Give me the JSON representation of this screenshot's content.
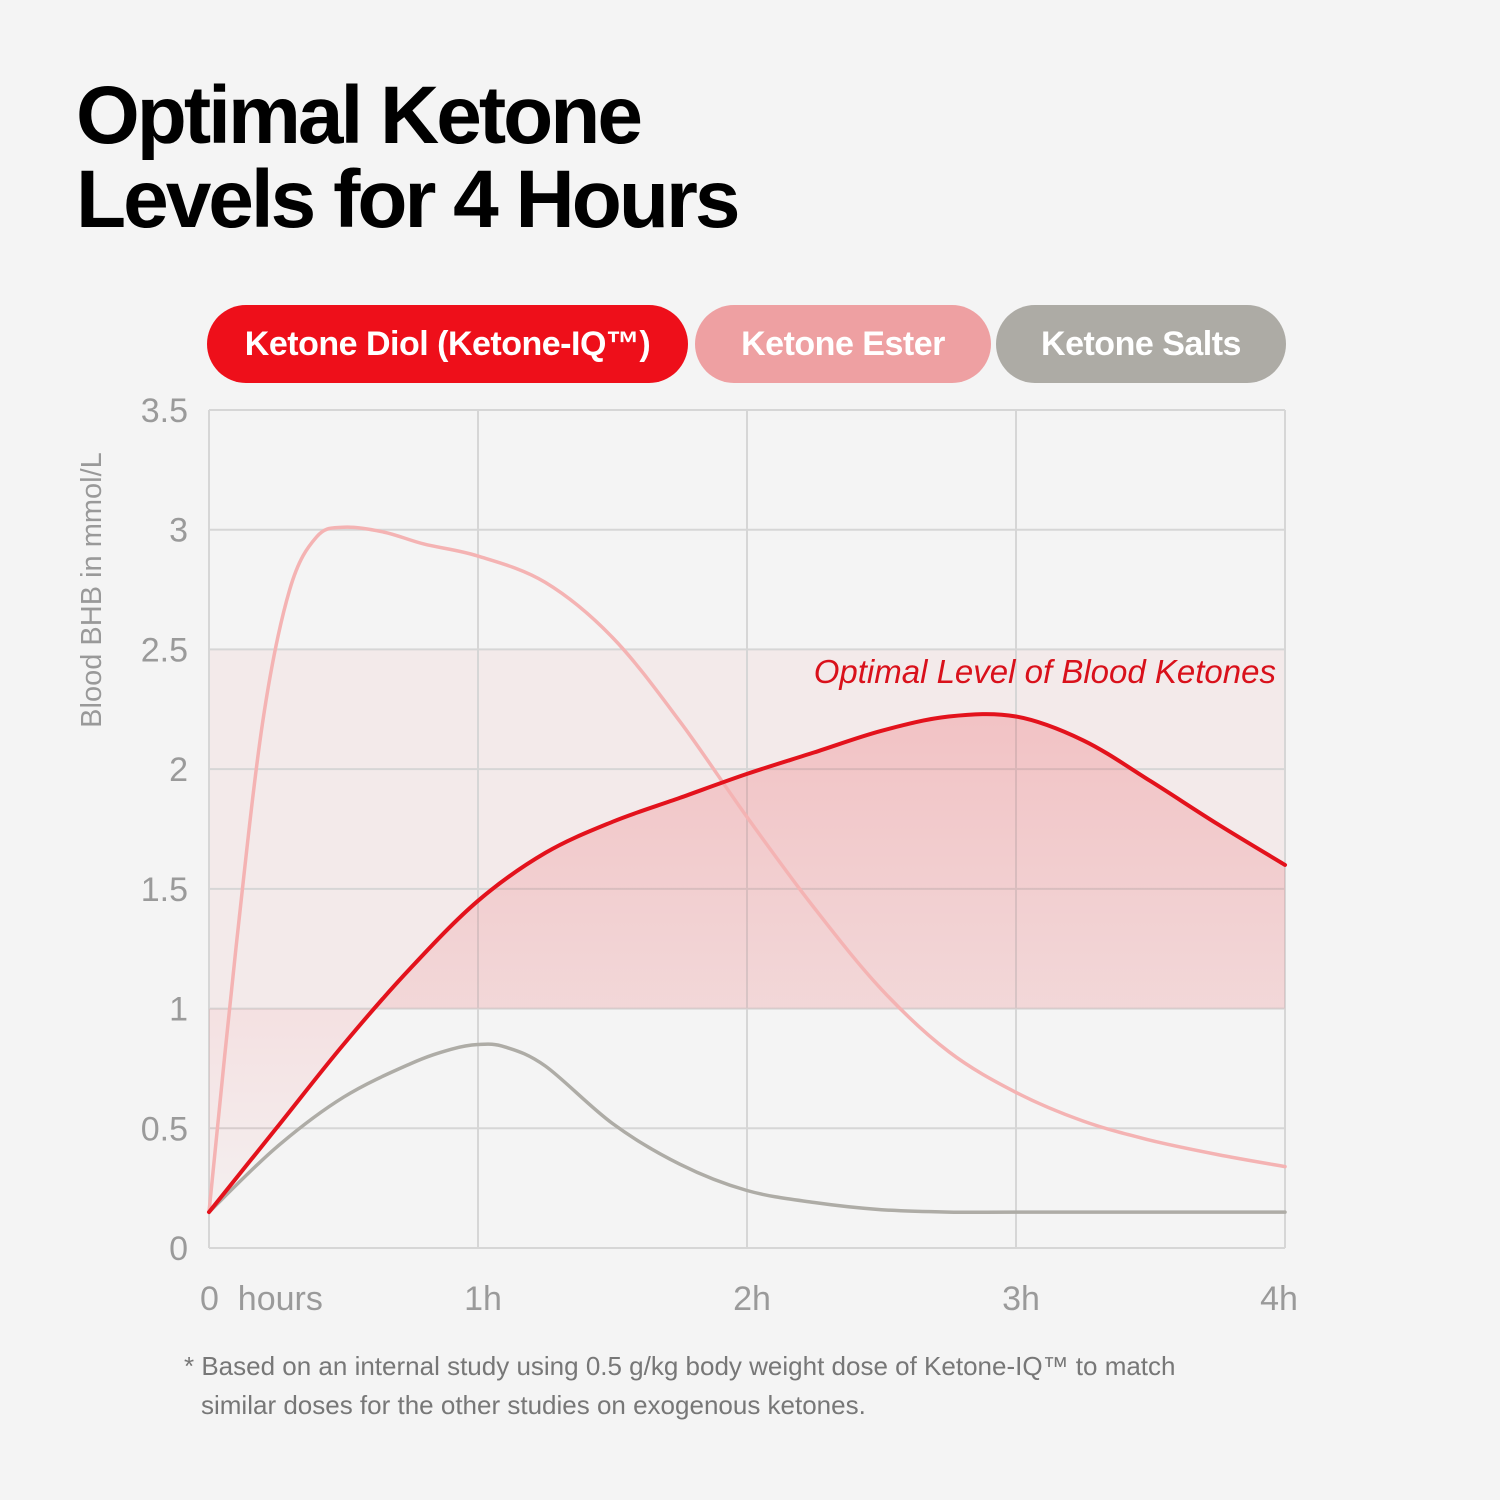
{
  "title_lines": [
    "Optimal Ketone",
    "Levels for 4 Hours"
  ],
  "legend": [
    {
      "label": "Ketone Diol (Ketone-IQ™)",
      "color": "#ee0f1a"
    },
    {
      "label": "Ketone Ester",
      "color": "#eea0a2"
    },
    {
      "label": "Ketone Salts",
      "color": "#adaba5"
    }
  ],
  "footnote_lines": [
    "* Based on an internal study using 0.5 g/kg body weight dose of Ketone-IQ™ to match",
    "similar doses for the other studies on exogenous ketones."
  ],
  "chart_data": {
    "type": "line",
    "title": "Optimal Ketone Levels for 4 Hours",
    "ylabel": "Blood BHB in mmol/L",
    "xlabel": "",
    "x_tick_labels": [
      "0  hours",
      "1h",
      "2h",
      "3h",
      "4h"
    ],
    "y_tick_labels": [
      "0",
      "0.5",
      "1",
      "1.5",
      "2",
      "2.5",
      "3",
      "3.5"
    ],
    "xlim": [
      0,
      4
    ],
    "ylim": [
      0,
      3.5
    ],
    "grid": true,
    "legend_position": "top",
    "band": {
      "label": "Optimal Level of Blood Ketones",
      "y_range": [
        1,
        2.5
      ],
      "color": "#ee0f1a"
    },
    "series": [
      {
        "name": "Ketone Diol (Ketone-IQ™)",
        "color": "#e3121c",
        "x": [
          0,
          0.25,
          0.5,
          0.75,
          1,
          1.25,
          1.5,
          1.75,
          2,
          2.25,
          2.5,
          2.75,
          3,
          3.25,
          3.5,
          3.75,
          4
        ],
        "values": [
          0.15,
          0.5,
          0.85,
          1.17,
          1.45,
          1.65,
          1.78,
          1.88,
          1.98,
          2.07,
          2.16,
          2.22,
          2.22,
          2.12,
          1.95,
          1.77,
          1.6
        ]
      },
      {
        "name": "Ketone Ester",
        "color": "#f4b3b3",
        "x": [
          0,
          0.1,
          0.2,
          0.3,
          0.4,
          0.5,
          0.65,
          0.8,
          1,
          1.25,
          1.5,
          1.75,
          2,
          2.25,
          2.5,
          2.75,
          3,
          3.25,
          3.5,
          3.75,
          4
        ],
        "values": [
          0.15,
          1.25,
          2.2,
          2.75,
          2.97,
          3.01,
          2.99,
          2.94,
          2.89,
          2.78,
          2.55,
          2.2,
          1.8,
          1.42,
          1.08,
          0.82,
          0.65,
          0.53,
          0.45,
          0.39,
          0.34
        ]
      },
      {
        "name": "Ketone Salts",
        "color": "#aeaca6",
        "x": [
          0,
          0.25,
          0.5,
          0.75,
          0.9,
          1,
          1.1,
          1.25,
          1.5,
          1.75,
          2,
          2.25,
          2.5,
          2.75,
          3,
          3.5,
          4
        ],
        "values": [
          0.15,
          0.42,
          0.63,
          0.77,
          0.83,
          0.85,
          0.84,
          0.76,
          0.52,
          0.35,
          0.24,
          0.19,
          0.16,
          0.15,
          0.15,
          0.15,
          0.15
        ]
      }
    ]
  }
}
